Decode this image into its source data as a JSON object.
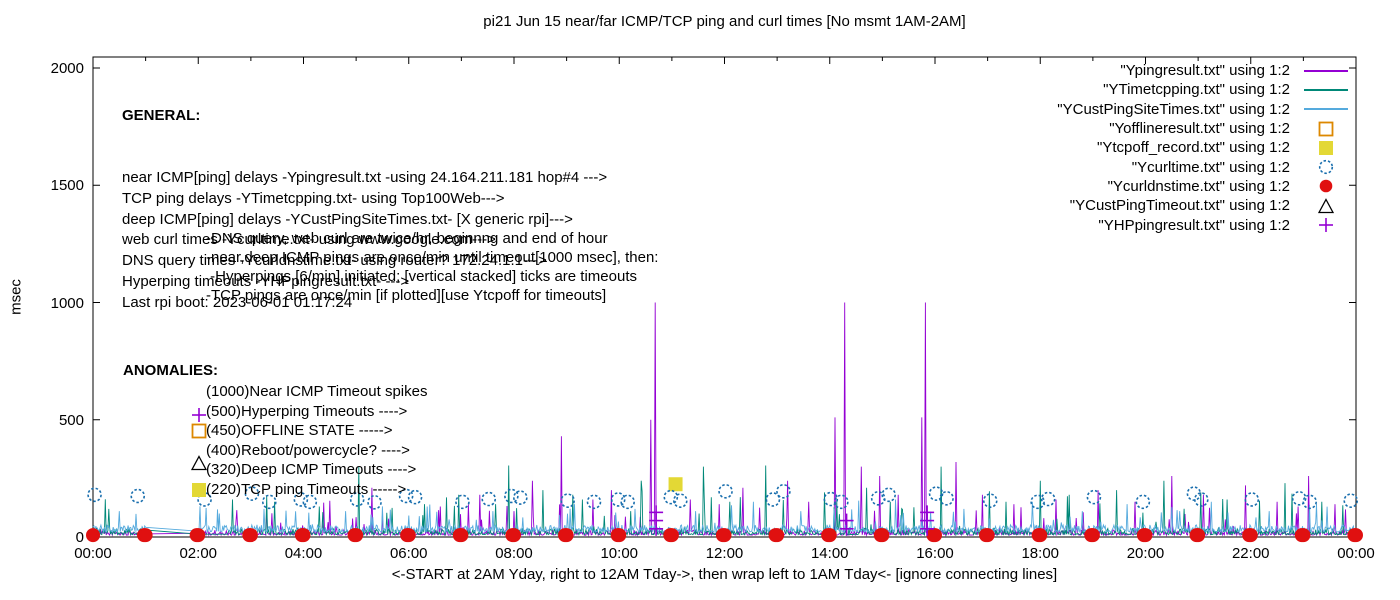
{
  "window": {
    "kind": "gnuplot-style time chart"
  },
  "title": "pi21 Jun 15  near/far ICMP/TCP ping and curl times [No msmt 1AM-2AM]",
  "y_axis_label": "msec",
  "x_caption": "<-START at 2AM Yday, right to 12AM Tday->, then wrap left to 1AM Tday<- [ignore connecting lines]",
  "general": {
    "heading": "GENERAL:",
    "lines": [
      "near ICMP[ping] delays -Ypingresult.txt -using 24.164.211.181 hop#4 --->",
      "TCP ping delays -YTimetcpping.txt- using Top100Web--->",
      "deep ICMP[ping] delays -YCustPingSiteTimes.txt- [X generic rpi]--->",
      "web curl times -Ycurltime.txt- using www.google.com--->",
      "DNS query times -Ycurldnstime.txt- using router? 172.24.1.1--->",
      "Hyperping timeouts -YHPpingresult.txt- --->",
      "Last rpi boot: 2023-06-01 01:17:24"
    ],
    "notes": [
      "-DNS query, web curl are twice/hr, beginnng and end of hour",
      "-near,deep ICMP pings are once/min until timeout[1000 msec], then:",
      " -Hyperpings [6/min] initiated; [vertical stacked] ticks are timeouts",
      "-TCP pings are once/min [if plotted][use Ytcpoff for timeouts]"
    ]
  },
  "anomalies": {
    "heading": "ANOMALIES:",
    "items": [
      {
        "label": "(1000)Near ICMP Timeout spikes",
        "marker": null,
        "color": null
      },
      {
        "label": "(500)Hyperping Timeouts ---->",
        "marker": "plus",
        "color": "#9400d3"
      },
      {
        "label": "(450)OFFLINE STATE ----->",
        "marker": "square-open",
        "color": "#dd8800"
      },
      {
        "label": "(400)Reboot/powercycle? ---->",
        "marker": null,
        "color": null
      },
      {
        "label": "(320)Deep ICMP Timeouts ---->",
        "marker": "triangle-open",
        "color": "#000000"
      },
      {
        "label": "(220)TCP ping Timeouts ----->",
        "marker": "square-fill",
        "color": "#e3d835"
      }
    ]
  },
  "chart_data": {
    "type": "line",
    "title": "pi21 Jun 15  near/far ICMP/TCP ping and curl times [No msmt 1AM-2AM]",
    "xlabel": "<-START at 2AM Yday, right to 12AM Tday->, then wrap left to 1AM Tday<- [ignore connecting lines]",
    "ylabel": "msec",
    "xlim_hours": [
      0,
      24
    ],
    "ylim": [
      0,
      2000
    ],
    "yticks": [
      0,
      500,
      1000,
      1500,
      2000
    ],
    "xtick_step_hours": 2,
    "xtick_labels": [
      "00:00",
      "02:00",
      "04:00",
      "06:00",
      "08:00",
      "10:00",
      "12:00",
      "14:00",
      "16:00",
      "18:00",
      "20:00",
      "22:00",
      "00:00"
    ],
    "grid": false,
    "legend_position": "top-right",
    "measurement_gap_hours": [
      1,
      2
    ],
    "series": [
      {
        "name": "Ypingresult.txt",
        "label": "\"Ypingresult.txt\" using 1:2",
        "kind": "line",
        "marker": "hline",
        "color": "#9400d3",
        "noise": {
          "base": 8,
          "jitter": 22,
          "spike_prob": 0.05,
          "spike_amp": 120
        },
        "spikes": [
          [
            3.3,
            130
          ],
          [
            4.5,
            155
          ],
          [
            5.3,
            210
          ],
          [
            6.6,
            130
          ],
          [
            7.35,
            180
          ],
          [
            8.35,
            240
          ],
          [
            8.9,
            430
          ],
          [
            9.5,
            160
          ],
          [
            9.85,
            200
          ],
          [
            10.6,
            500
          ],
          [
            10.68,
            1000
          ],
          [
            11.35,
            160
          ],
          [
            11.9,
            140
          ],
          [
            12.35,
            210
          ],
          [
            13.2,
            240
          ],
          [
            13.6,
            150
          ],
          [
            14.1,
            510
          ],
          [
            14.29,
            1000
          ],
          [
            14.6,
            300
          ],
          [
            14.95,
            260
          ],
          [
            15.3,
            180
          ],
          [
            15.75,
            510
          ],
          [
            15.82,
            1000
          ],
          [
            16.4,
            320
          ],
          [
            16.9,
            180
          ],
          [
            17.5,
            140
          ],
          [
            18.3,
            160
          ],
          [
            19.1,
            200
          ],
          [
            19.8,
            150
          ],
          [
            20.5,
            260
          ],
          [
            21.1,
            180
          ],
          [
            21.9,
            220
          ],
          [
            22.5,
            150
          ],
          [
            23.1,
            260
          ],
          [
            23.6,
            140
          ]
        ]
      },
      {
        "name": "YTimetcpping.txt",
        "label": "\"YTimetcpping.txt\" using 1:2",
        "kind": "line",
        "marker": "hline",
        "color": "#008878",
        "noise": {
          "base": 10,
          "jitter": 28,
          "spike_prob": 0.04,
          "spike_amp": 180
        },
        "flat": [
          [
            2.0,
            2.55,
            12
          ]
        ],
        "spikes": [
          [
            0.3,
            120
          ],
          [
            2.65,
            160
          ],
          [
            3.45,
            150
          ],
          [
            4.3,
            130
          ],
          [
            5.05,
            300
          ],
          [
            6.3,
            140
          ],
          [
            6.95,
            180
          ],
          [
            7.9,
            305
          ],
          [
            8.55,
            200
          ],
          [
            9.3,
            160
          ],
          [
            10.42,
            240
          ],
          [
            11.6,
            300
          ],
          [
            12.1,
            150
          ],
          [
            12.78,
            305
          ],
          [
            13.9,
            190
          ],
          [
            14.7,
            210
          ],
          [
            15.15,
            150
          ],
          [
            16.12,
            300
          ],
          [
            17.35,
            150
          ],
          [
            18.0,
            240
          ],
          [
            18.55,
            180
          ],
          [
            19.45,
            200
          ],
          [
            20.35,
            240
          ],
          [
            21.05,
            190
          ],
          [
            21.55,
            160
          ],
          [
            22.65,
            230
          ],
          [
            23.35,
            150
          ]
        ]
      },
      {
        "name": "YCustPingSiteTimes.txt",
        "label": "\"YCustPingSiteTimes.txt\" using 1:2",
        "kind": "line",
        "marker": "hline",
        "color": "#55aadd",
        "noise": {
          "base": 22,
          "jitter": 30,
          "spike_prob": 0.06,
          "spike_amp": 100
        },
        "spikes": [
          [
            0.5,
            110
          ],
          [
            2.4,
            100
          ],
          [
            3.25,
            120
          ],
          [
            4.8,
            110
          ],
          [
            6.35,
            130
          ],
          [
            7.6,
            110
          ],
          [
            9.15,
            140
          ],
          [
            10.3,
            120
          ],
          [
            11.45,
            110
          ],
          [
            12.55,
            150
          ],
          [
            13.45,
            110
          ],
          [
            14.55,
            155
          ],
          [
            15.25,
            160
          ],
          [
            16.55,
            120
          ],
          [
            17.85,
            150
          ],
          [
            18.8,
            110
          ],
          [
            19.65,
            140
          ],
          [
            20.65,
            110
          ],
          [
            21.25,
            150
          ],
          [
            22.35,
            110
          ],
          [
            23.25,
            140
          ]
        ]
      },
      {
        "name": "Yofflineresult.txt",
        "label": "\"Yofflineresult.txt\" using 1:2",
        "kind": "scatter",
        "marker": "square-open",
        "color": "#dd8800",
        "points": []
      },
      {
        "name": "Ytcpoff_record.txt",
        "label": "\"Ytcpoff_record.txt\" using 1:2",
        "kind": "scatter",
        "marker": "square-fill",
        "color": "#e3d835",
        "points": [
          [
            11.07,
            225
          ]
        ]
      },
      {
        "name": "Ycurltime.txt",
        "label": "\"Ycurltime.txt\" using 1:2",
        "kind": "scatter",
        "marker": "circle-open",
        "color": "#1a6fae",
        "points": [
          [
            0.03,
            180
          ],
          [
            0.85,
            175
          ],
          [
            2.12,
            160
          ],
          [
            3.02,
            185
          ],
          [
            3.35,
            150
          ],
          [
            3.95,
            160
          ],
          [
            4.12,
            150
          ],
          [
            5.02,
            160
          ],
          [
            5.35,
            148
          ],
          [
            5.95,
            175
          ],
          [
            6.12,
            170
          ],
          [
            7.02,
            150
          ],
          [
            7.52,
            162
          ],
          [
            7.95,
            175
          ],
          [
            8.12,
            168
          ],
          [
            9.02,
            155
          ],
          [
            9.52,
            150
          ],
          [
            9.98,
            160
          ],
          [
            10.16,
            150
          ],
          [
            10.98,
            170
          ],
          [
            11.16,
            155
          ],
          [
            12.02,
            195
          ],
          [
            12.92,
            160
          ],
          [
            13.12,
            195
          ],
          [
            14.02,
            162
          ],
          [
            14.22,
            150
          ],
          [
            14.92,
            165
          ],
          [
            15.12,
            180
          ],
          [
            16.02,
            185
          ],
          [
            16.22,
            165
          ],
          [
            17.05,
            155
          ],
          [
            17.95,
            150
          ],
          [
            18.15,
            162
          ],
          [
            19.02,
            170
          ],
          [
            19.95,
            150
          ],
          [
            20.92,
            185
          ],
          [
            21.06,
            160
          ],
          [
            22.02,
            160
          ],
          [
            22.92,
            165
          ],
          [
            23.12,
            150
          ],
          [
            23.9,
            155
          ]
        ]
      },
      {
        "name": "Ycurldnstime.txt",
        "label": "\"Ycurldnstime.txt\" using 1:2",
        "kind": "scatter",
        "marker": "circle-fill",
        "color": "#e01010",
        "points": [
          [
            24,
            8
          ]
        ],
        "hourly": {
          "start": 0,
          "end": 23,
          "offsets": [
            0,
            0.97
          ],
          "value": 8
        }
      },
      {
        "name": "YCustPingTimeout.txt",
        "label": "\"YCustPingTimeout.txt\" using 1:2",
        "kind": "scatter",
        "marker": "triangle-open",
        "color": "#000000",
        "points": []
      },
      {
        "name": "YHPpingresult.txt",
        "label": "\"YHPpingresult.txt\" using 1:2",
        "kind": "scatter",
        "marker": "plus",
        "color": "#9400d3",
        "points": [
          [
            10.7,
            35
          ],
          [
            10.7,
            70
          ],
          [
            10.7,
            105
          ],
          [
            14.32,
            35
          ],
          [
            14.32,
            70
          ],
          [
            15.85,
            35
          ],
          [
            15.85,
            70
          ],
          [
            15.85,
            105
          ]
        ]
      }
    ]
  }
}
